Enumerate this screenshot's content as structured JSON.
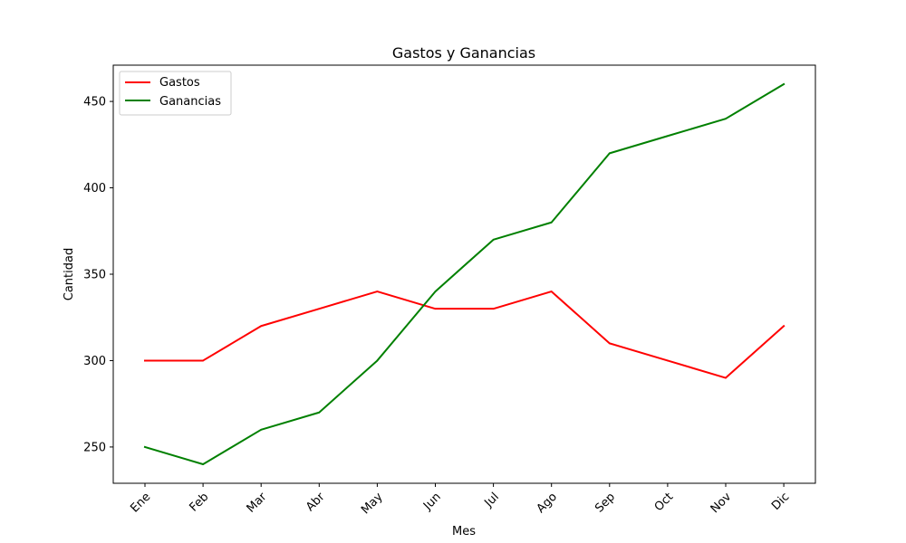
{
  "chart_data": {
    "type": "line",
    "title": "Gastos y Ganancias",
    "xlabel": "Mes",
    "ylabel": "Cantidad",
    "categories": [
      "Ene",
      "Feb",
      "Mar",
      "Abr",
      "May",
      "Jun",
      "Jul",
      "Ago",
      "Sep",
      "Oct",
      "Nov",
      "Dic"
    ],
    "series": [
      {
        "name": "Gastos",
        "color": "#ff0000",
        "values": [
          300,
          300,
          320,
          330,
          340,
          330,
          330,
          340,
          310,
          300,
          290,
          320
        ]
      },
      {
        "name": "Ganancias",
        "color": "#008000",
        "values": [
          250,
          240,
          260,
          270,
          300,
          340,
          370,
          380,
          420,
          430,
          440,
          460
        ]
      }
    ],
    "yticks": [
      250,
      300,
      350,
      400,
      450
    ],
    "ylim": [
      229,
      471
    ],
    "grid": false,
    "legend_position": "top-left"
  }
}
